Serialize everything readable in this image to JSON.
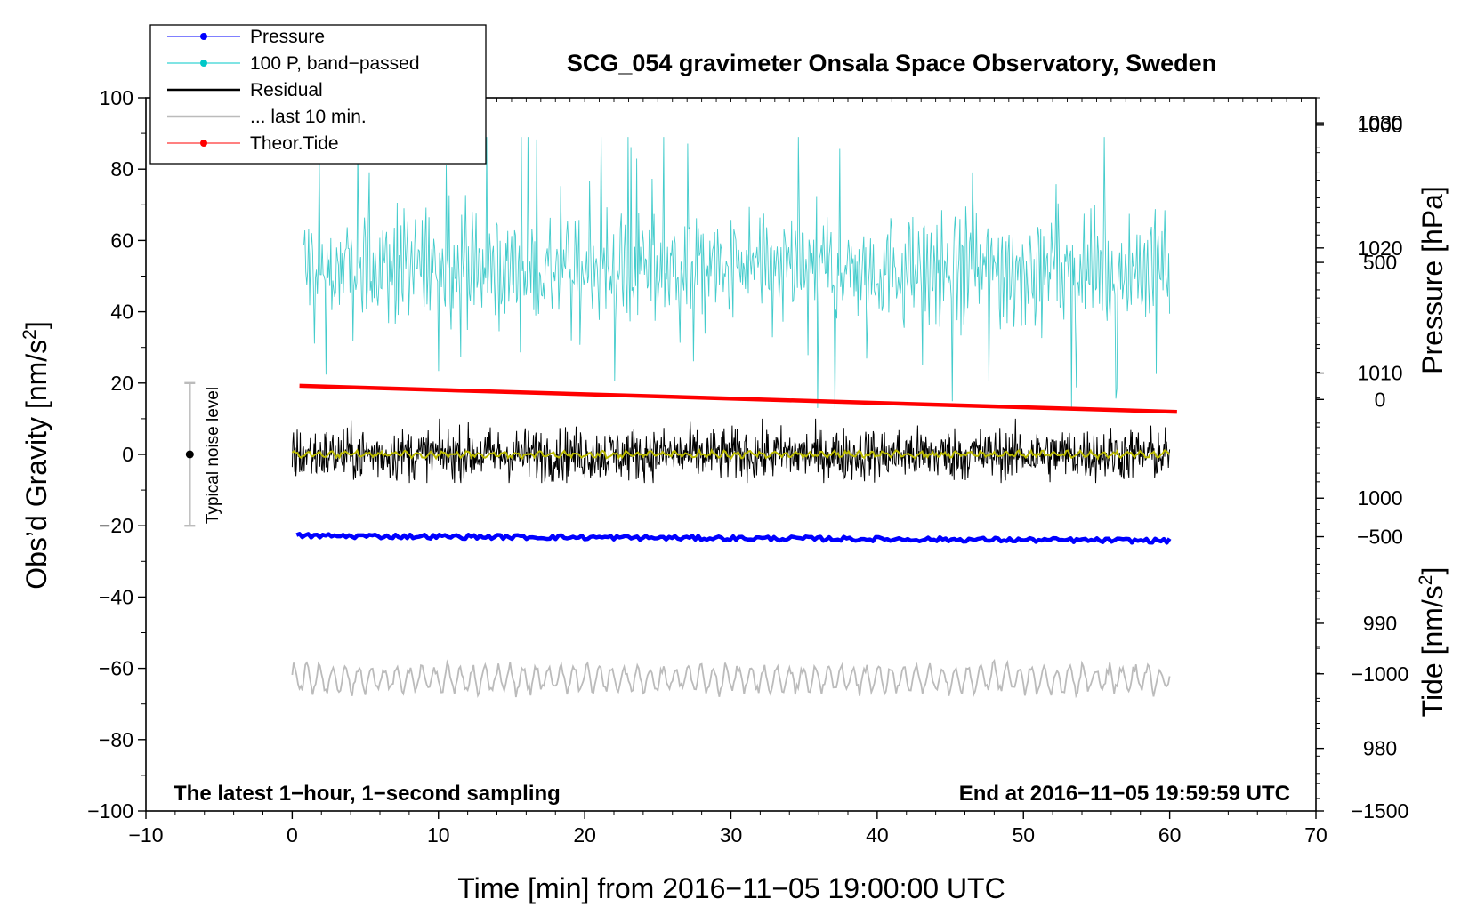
{
  "chart_data": {
    "type": "line",
    "title": "SCG_054 gravimeter Onsala Space Observatory, Sweden",
    "xlabel": "Time [min] from 2016−11−05 19:00:00 UTC",
    "ylabel_left_main": "Obs’d Gravity [nm/s",
    "ylabel_left_sup": "2",
    "ylabel_left_close": "]",
    "ylabel_right_pressure": "Pressure [hPa]",
    "ylabel_right_tide_main": "Tide [nm/s",
    "ylabel_right_tide_sup": "2",
    "ylabel_right_tide_close": "]",
    "xlim": [
      -10,
      70
    ],
    "ylim": [
      -100,
      100
    ],
    "pressure_axis_range": [
      975,
      1032
    ],
    "tide_axis_range": [
      -1500,
      1100
    ],
    "x_ticks": [
      "−10",
      "0",
      "10",
      "20",
      "30",
      "40",
      "50",
      "60",
      "70"
    ],
    "x_tick_values": [
      -10,
      0,
      10,
      20,
      30,
      40,
      50,
      60,
      70
    ],
    "y_ticks": [
      "100",
      "80",
      "60",
      "40",
      "20",
      "0",
      "−20",
      "−40",
      "−60",
      "−80",
      "−100"
    ],
    "y_tick_values": [
      100,
      80,
      60,
      40,
      20,
      0,
      -20,
      -40,
      -60,
      -80,
      -100
    ],
    "pressure_ticks": [
      "1030",
      "1020",
      "1010",
      "1000",
      "990",
      "980"
    ],
    "pressure_tick_values": [
      1030,
      1020,
      1010,
      1000,
      990,
      980
    ],
    "tide_ticks": [
      "1000",
      "500",
      "0",
      "−500",
      "−1000",
      "−1500"
    ],
    "tide_tick_values": [
      1000,
      500,
      0,
      -500,
      -1000,
      -1500
    ],
    "legend": [
      {
        "label": "Pressure",
        "color": "#0000ff",
        "marker": true
      },
      {
        "label": "100 P, band−passed",
        "color": "#00c8c8",
        "marker": true
      },
      {
        "label": "Residual",
        "color": "#000000",
        "marker": false
      },
      {
        "label": "... last 10 min.",
        "color": "#bbbbbb",
        "marker": false
      },
      {
        "label": "Theor.Tide",
        "color": "#ff0000",
        "marker": true
      }
    ],
    "series": [
      {
        "name": "Pressure",
        "color": "#0000ff",
        "axis": "pressure",
        "x": [
          0.3,
          60
        ],
        "values": [
          997.0,
          996.6
        ],
        "note": "thick nearly flat line"
      },
      {
        "name": "100 P, band−passed",
        "color": "#44cccc",
        "axis": "gravity",
        "x_range": [
          0.8,
          60
        ],
        "center": 52,
        "amplitude_typical": 12,
        "peak_max": 89,
        "peak_min": 13
      },
      {
        "name": "Residual",
        "color": "#000000",
        "axis": "gravity",
        "x_range": [
          0,
          60
        ],
        "center": 0,
        "amplitude_typical": 5,
        "peak_max": 10,
        "peak_min": -8
      },
      {
        "name": "Residual (smoothed)",
        "color": "#bbbb00",
        "axis": "gravity",
        "x_range": [
          0,
          60
        ],
        "center": 0,
        "amplitude_typical": 1
      },
      {
        "name": "... last 10 min.",
        "color": "#bbbbbb",
        "axis": "gravity",
        "x_range": [
          0,
          60
        ],
        "center": -63,
        "amplitude_typical": 4,
        "peak_max": -53,
        "peak_min": -69
      },
      {
        "name": "Theor.Tide",
        "color": "#ff0000",
        "axis": "tide",
        "x": [
          0.5,
          60.5
        ],
        "values": [
          50,
          -45
        ]
      }
    ],
    "noise_bar": {
      "label": "Typical noise level",
      "x": -7,
      "center": 0,
      "low": -20,
      "high": 20
    },
    "annotation_left": "The latest 1−hour, 1−second sampling",
    "annotation_right": "End at 2016−11−05 19:59:59 UTC"
  }
}
